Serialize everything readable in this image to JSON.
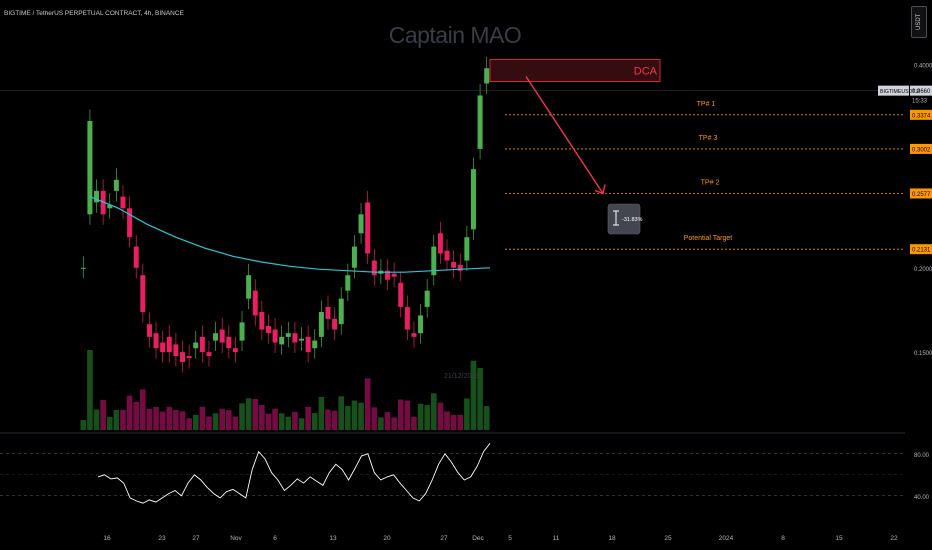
{
  "header": {
    "symbol_line": "BIGTIME / TetherUS PERPETUAL CONTRACT, 4h, BINANCE",
    "watermark": "Captain MAO",
    "currency": "USDT"
  },
  "colors": {
    "up": "#26a69a",
    "up_bright": "#4caf50",
    "down": "#e91e63",
    "ma": "#26c6da",
    "dca": "#f23645",
    "target": "#ff9800",
    "rsi": "#ffffff"
  },
  "chart_data": {
    "type": "candlestick",
    "price_axis": {
      "ticks": [
        "0.4000",
        "0.2000",
        "0.1500"
      ],
      "ylim": [
        0.115,
        0.435
      ],
      "scale": "log"
    },
    "time_axis": {
      "ticks": [
        "16",
        "23",
        "27",
        "Nov",
        "6",
        "13",
        "20",
        "27",
        "Dec",
        "5",
        "11",
        "18",
        "25",
        "2024",
        "8",
        "15",
        "22"
      ]
    },
    "price_path": [
      [
        0.2,
        0.2
      ],
      [
        0.24,
        0.33
      ],
      [
        0.25,
        0.26
      ],
      [
        0.26,
        0.24
      ],
      [
        0.245,
        0.248
      ],
      [
        0.26,
        0.27
      ],
      [
        0.255,
        0.245
      ],
      [
        0.245,
        0.222
      ],
      [
        0.215,
        0.2
      ],
      [
        0.195,
        0.172
      ],
      [
        0.165,
        0.158
      ],
      [
        0.16,
        0.152
      ],
      [
        0.155,
        0.15
      ],
      [
        0.158,
        0.15
      ],
      [
        0.154,
        0.148
      ],
      [
        0.15,
        0.145
      ],
      [
        0.148,
        0.147
      ],
      [
        0.152,
        0.155
      ],
      [
        0.158,
        0.15
      ],
      [
        0.15,
        0.148
      ],
      [
        0.156,
        0.16
      ],
      [
        0.162,
        0.155
      ],
      [
        0.158,
        0.152
      ],
      [
        0.152,
        0.15
      ],
      [
        0.156,
        0.166
      ],
      [
        0.18,
        0.195
      ],
      [
        0.185,
        0.17
      ],
      [
        0.172,
        0.162
      ],
      [
        0.164,
        0.16
      ],
      [
        0.162,
        0.155
      ],
      [
        0.154,
        0.158
      ],
      [
        0.158,
        0.16
      ],
      [
        0.16,
        0.155
      ],
      [
        0.156,
        0.157
      ],
      [
        0.158,
        0.15
      ],
      [
        0.152,
        0.156
      ],
      [
        0.158,
        0.172
      ],
      [
        0.175,
        0.168
      ],
      [
        0.168,
        0.162
      ],
      [
        0.165,
        0.18
      ],
      [
        0.185,
        0.195
      ],
      [
        0.2,
        0.215
      ],
      [
        0.225,
        0.24
      ],
      [
        0.25,
        0.21
      ],
      [
        0.205,
        0.195
      ],
      [
        0.196,
        0.198
      ],
      [
        0.198,
        0.192
      ],
      [
        0.196,
        0.194
      ],
      [
        0.19,
        0.175
      ],
      [
        0.175,
        0.162
      ],
      [
        0.16,
        0.158
      ],
      [
        0.16,
        0.17
      ],
      [
        0.175,
        0.185
      ],
      [
        0.195,
        0.215
      ],
      [
        0.225,
        0.21
      ],
      [
        0.212,
        0.205
      ],
      [
        0.204,
        0.2
      ],
      [
        0.202,
        0.198
      ],
      [
        0.205,
        0.222
      ],
      [
        0.228,
        0.28
      ],
      [
        0.3,
        0.36
      ],
      [
        0.375,
        0.395
      ]
    ],
    "moving_average": [
      0.255,
      0.245,
      0.232,
      0.222,
      0.214,
      0.208,
      0.204,
      0.201,
      0.199,
      0.198,
      0.197,
      0.197,
      0.198,
      0.199,
      0.2
    ],
    "price_labels": [
      {
        "text": "0.3660",
        "price": 0.366,
        "bg": "#d1d4dc"
      },
      {
        "text": "0.3374",
        "price": 0.337,
        "bg": "#ff9800"
      },
      {
        "text": "0.3002",
        "price": 0.3,
        "bg": "#ff9800"
      },
      {
        "text": "0.2577",
        "price": 0.2577,
        "bg": "#ff9800"
      },
      {
        "text": "0.2131",
        "price": 0.2131,
        "bg": "#ff9800"
      }
    ],
    "current_price_time": "15:33",
    "symbol_tag": "BIGTIMEUSDT.P",
    "annotations": {
      "dca": "DCA",
      "targets": [
        {
          "label": "TP# 1",
          "price": 0.337
        },
        {
          "label": "TP# 3",
          "price": 0.3
        },
        {
          "label": "TP# 2",
          "price": 0.2577
        },
        {
          "label": "Potential Target",
          "price": 0.2131
        }
      ],
      "measure": "-31.83%",
      "faint_date": "21/12/2023"
    },
    "rsi": {
      "levels": [
        "80.00",
        "40.00"
      ],
      "ylim": [
        15,
        95
      ],
      "values": [
        58,
        60,
        56,
        57,
        52,
        38,
        35,
        33,
        36,
        34,
        38,
        42,
        45,
        40,
        52,
        60,
        55,
        48,
        42,
        38,
        44,
        46,
        42,
        38,
        65,
        82,
        75,
        62,
        55,
        45,
        50,
        56,
        52,
        58,
        54,
        50,
        62,
        70,
        65,
        55,
        66,
        78,
        80,
        62,
        55,
        58,
        60,
        52,
        45,
        38,
        35,
        42,
        55,
        70,
        80,
        72,
        62,
        55,
        58,
        68,
        82,
        90
      ]
    }
  }
}
